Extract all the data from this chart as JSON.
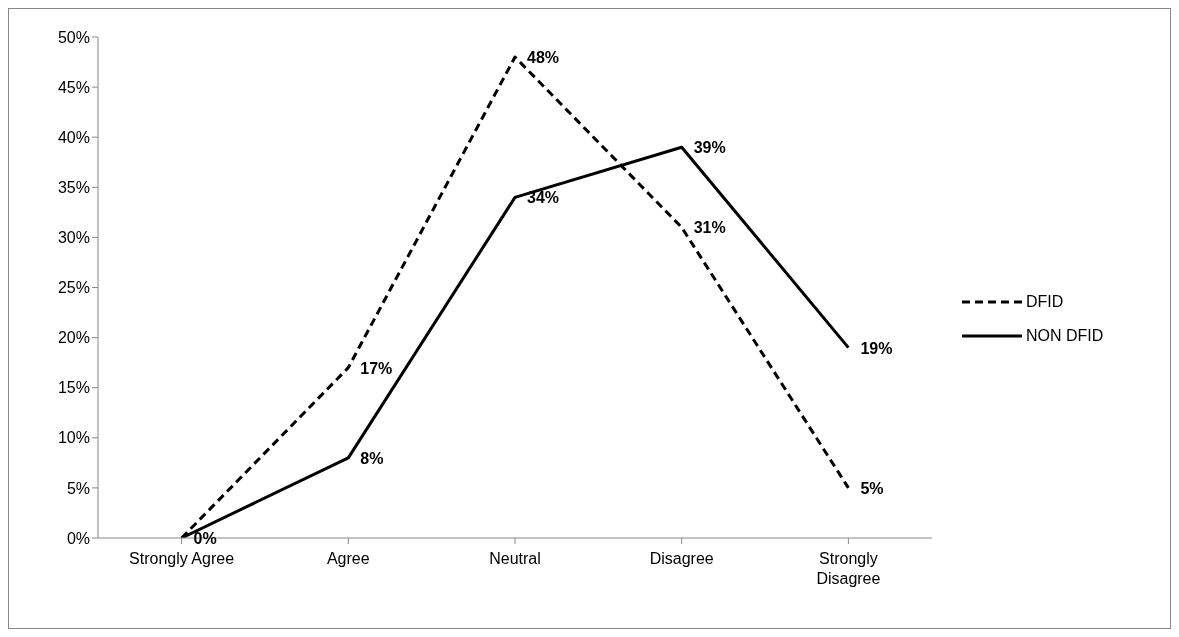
{
  "chart_data": {
    "type": "line",
    "categories": [
      "Strongly Agree",
      "Agree",
      "Neutral",
      "Disagree",
      "Strongly Disagree"
    ],
    "series": [
      {
        "name": "DFID",
        "color": "#000000",
        "line_style": "dashed",
        "values": [
          0,
          17,
          48,
          31,
          5
        ],
        "value_labels": [
          null,
          "17%",
          "48%",
          "31%",
          "5%"
        ]
      },
      {
        "name": "NON DFID",
        "color": "#000000",
        "line_style": "solid",
        "values": [
          0,
          8,
          34,
          39,
          19
        ],
        "value_labels": [
          "0%",
          "8%",
          "34%",
          "39%",
          "19%"
        ]
      }
    ],
    "ylim": [
      0,
      50
    ],
    "yticks": [
      {
        "value": 0,
        "label": "0%"
      },
      {
        "value": 5,
        "label": "5%"
      },
      {
        "value": 10,
        "label": "10%"
      },
      {
        "value": 15,
        "label": "15%"
      },
      {
        "value": 20,
        "label": "20%"
      },
      {
        "value": 25,
        "label": "25%"
      },
      {
        "value": 30,
        "label": "30%"
      },
      {
        "value": 35,
        "label": "35%"
      },
      {
        "value": 40,
        "label": "40%"
      },
      {
        "value": 45,
        "label": "45%"
      },
      {
        "value": 50,
        "label": "50%"
      }
    ],
    "grid": false,
    "legend": "right",
    "marker": "none"
  }
}
